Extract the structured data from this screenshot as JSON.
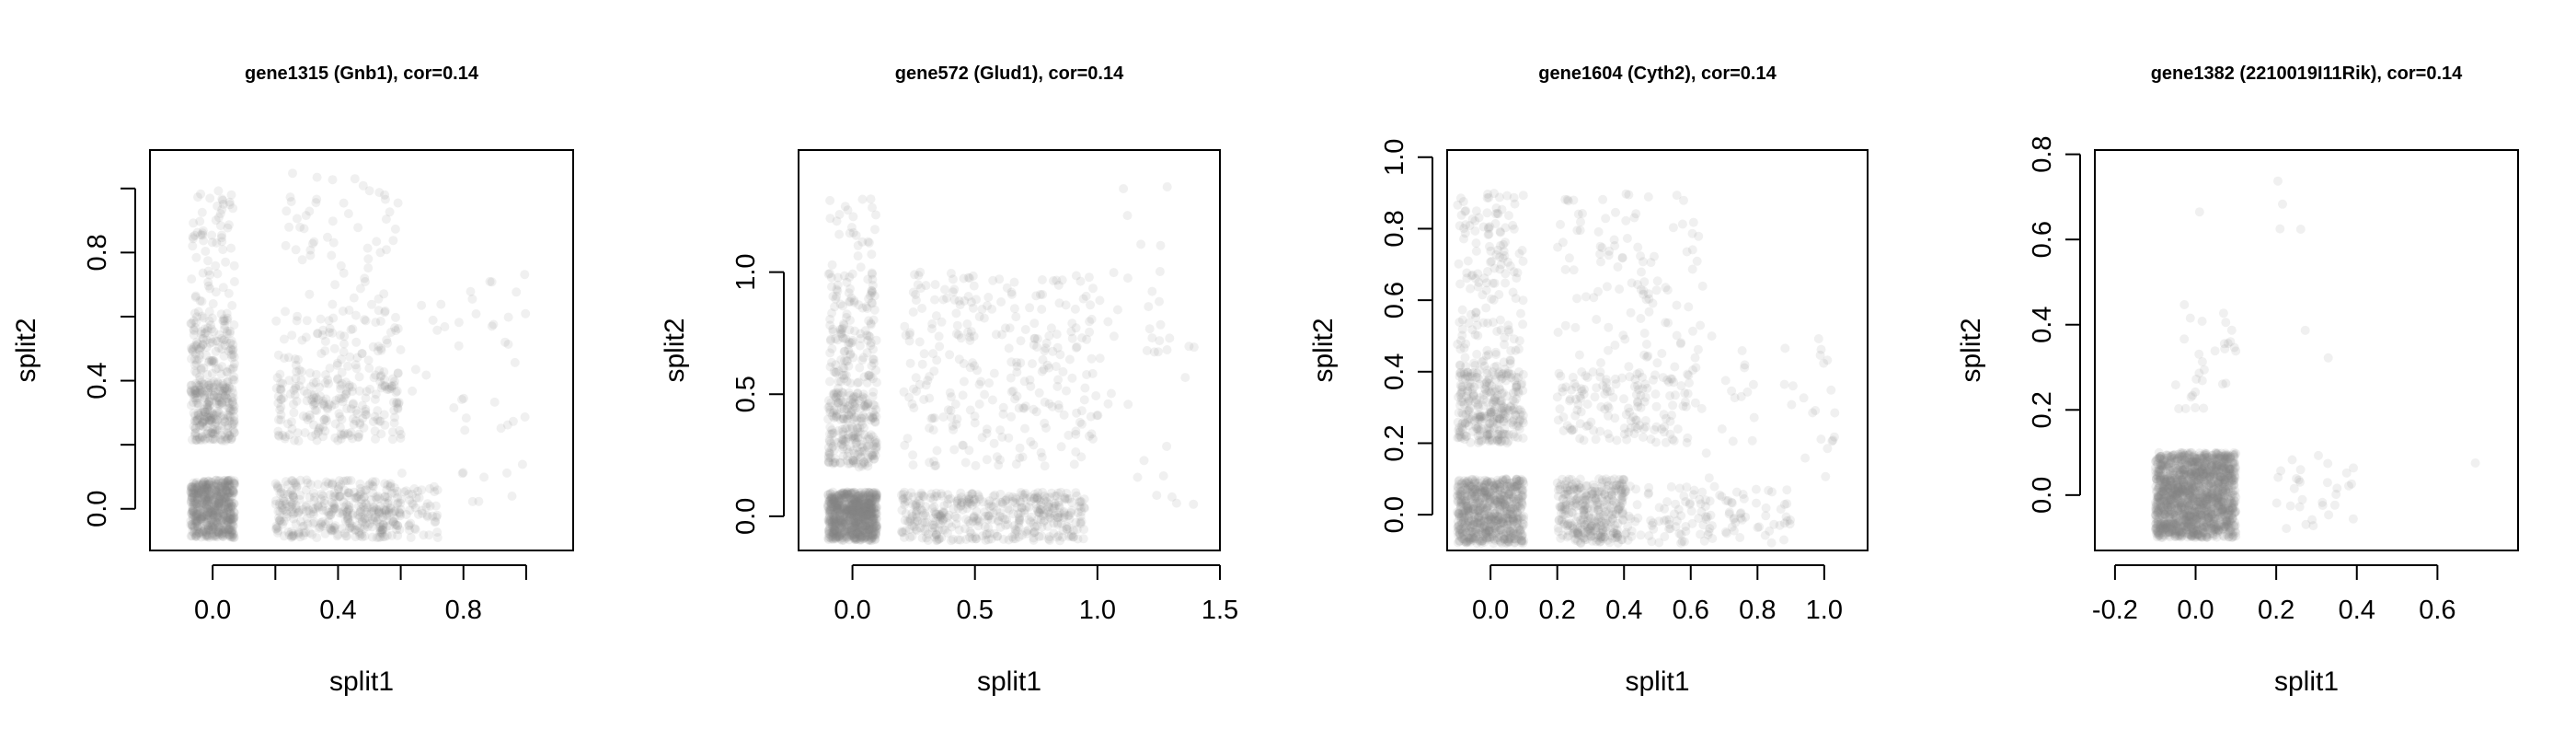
{
  "chart_data": [
    {
      "type": "scatter",
      "title": "gene1315 (Gnb1), cor=0.14",
      "xlabel": "split1",
      "ylabel": "split2",
      "xlim": [
        -0.2,
        1.15
      ],
      "ylim": [
        -0.13,
        1.12
      ],
      "xticks": [
        0.0,
        0.4,
        0.8
      ],
      "xtick_labels": [
        "0.0",
        "0.4",
        "0.8"
      ],
      "xticks_unlabeled": [
        0.2,
        0.6,
        1.0
      ],
      "yticks": [
        0.0,
        0.4,
        0.8
      ],
      "ytick_labels": [
        "0.0",
        "0.4",
        "0.8"
      ],
      "yticks_unlabeled": [
        0.2,
        0.6,
        1.0
      ],
      "point_color": "#808080",
      "point_opacity": 0.12,
      "grid": false,
      "clusters": [
        {
          "x": [
            -0.07,
            0.07
          ],
          "y": [
            -0.09,
            0.09
          ],
          "count": 600
        },
        {
          "x": [
            0.2,
            0.6
          ],
          "y": [
            -0.09,
            0.09
          ],
          "count": 380
        },
        {
          "x": [
            0.6,
            0.72
          ],
          "y": [
            -0.09,
            0.07
          ],
          "count": 45
        },
        {
          "x": [
            -0.07,
            0.07
          ],
          "y": [
            0.21,
            0.4
          ],
          "count": 260
        },
        {
          "x": [
            0.2,
            0.6
          ],
          "y": [
            0.21,
            0.4
          ],
          "count": 190
        },
        {
          "x": [
            -0.07,
            0.07
          ],
          "y": [
            0.4,
            0.6
          ],
          "count": 120
        },
        {
          "x": [
            0.2,
            0.6
          ],
          "y": [
            0.4,
            0.6
          ],
          "count": 90
        },
        {
          "x": [
            -0.07,
            0.07
          ],
          "y": [
            0.6,
            1.0
          ],
          "count": 70
        },
        {
          "x": [
            0.2,
            0.6
          ],
          "y": [
            0.6,
            1.05
          ],
          "count": 65
        },
        {
          "x": [
            0.6,
            1.0
          ],
          "y": [
            0.0,
            0.75
          ],
          "count": 45
        }
      ]
    },
    {
      "type": "scatter",
      "title": "gene572 (Glud1), cor=0.14",
      "xlabel": "split1",
      "ylabel": "split2",
      "xlim": [
        -0.22,
        1.5
      ],
      "ylim": [
        -0.14,
        1.5
      ],
      "xticks": [
        0.0,
        0.5,
        1.0,
        1.5
      ],
      "xtick_labels": [
        "0.0",
        "0.5",
        "1.0",
        "1.5"
      ],
      "yticks": [
        0.0,
        0.5,
        1.0
      ],
      "ytick_labels": [
        "0.0",
        "0.5",
        "1.0"
      ],
      "point_color": "#808080",
      "point_opacity": 0.12,
      "grid": false,
      "clusters": [
        {
          "x": [
            -0.1,
            0.1
          ],
          "y": [
            -0.1,
            0.1
          ],
          "count": 800
        },
        {
          "x": [
            0.2,
            0.95
          ],
          "y": [
            -0.1,
            0.1
          ],
          "count": 420
        },
        {
          "x": [
            -0.1,
            0.1
          ],
          "y": [
            0.2,
            0.5
          ],
          "count": 230
        },
        {
          "x": [
            -0.1,
            0.1
          ],
          "y": [
            0.5,
            1.0
          ],
          "count": 150
        },
        {
          "x": [
            -0.1,
            0.1
          ],
          "y": [
            1.0,
            1.3
          ],
          "count": 25
        },
        {
          "x": [
            0.2,
            1.0
          ],
          "y": [
            0.2,
            1.0
          ],
          "count": 280
        },
        {
          "x": [
            1.0,
            1.4
          ],
          "y": [
            0.0,
            1.35
          ],
          "count": 40
        }
      ]
    },
    {
      "type": "scatter",
      "title": "gene1604 (Cyth2), cor=0.14",
      "xlabel": "split1",
      "ylabel": "split2",
      "xlim": [
        -0.13,
        1.13
      ],
      "ylim": [
        -0.1,
        1.02
      ],
      "xticks": [
        0.0,
        0.2,
        0.4,
        0.6,
        0.8,
        1.0
      ],
      "xtick_labels": [
        "0.0",
        "0.2",
        "0.4",
        "0.6",
        "0.8",
        "1.0"
      ],
      "yticks": [
        0.0,
        0.2,
        0.4,
        0.6,
        0.8,
        1.0
      ],
      "ytick_labels": [
        "0.0",
        "0.2",
        "0.4",
        "0.6",
        "0.8",
        "1.0"
      ],
      "point_color": "#808080",
      "point_opacity": 0.12,
      "grid": false,
      "clusters": [
        {
          "x": [
            -0.1,
            0.1
          ],
          "y": [
            -0.08,
            0.1
          ],
          "count": 700
        },
        {
          "x": [
            0.2,
            0.4
          ],
          "y": [
            -0.08,
            0.1
          ],
          "count": 330
        },
        {
          "x": [
            0.4,
            0.9
          ],
          "y": [
            -0.08,
            0.08
          ],
          "count": 130
        },
        {
          "x": [
            -0.1,
            0.1
          ],
          "y": [
            0.2,
            0.4
          ],
          "count": 300
        },
        {
          "x": [
            0.2,
            0.6
          ],
          "y": [
            0.2,
            0.4
          ],
          "count": 150
        },
        {
          "x": [
            -0.1,
            0.1
          ],
          "y": [
            0.4,
            0.9
          ],
          "count": 160
        },
        {
          "x": [
            0.2,
            0.65
          ],
          "y": [
            0.4,
            0.9
          ],
          "count": 110
        },
        {
          "x": [
            0.6,
            1.05
          ],
          "y": [
            0.1,
            0.5
          ],
          "count": 40
        }
      ]
    },
    {
      "type": "scatter",
      "title": "gene1382 (2210019I11Rik), cor=0.14",
      "xlabel": "split1",
      "ylabel": "split2",
      "xlim": [
        -0.25,
        0.8
      ],
      "ylim": [
        -0.13,
        0.81
      ],
      "xticks": [
        -0.2,
        0.0,
        0.2,
        0.4,
        0.6
      ],
      "xtick_labels": [
        "-0.2",
        "0.0",
        "0.2",
        "0.4",
        "0.6"
      ],
      "yticks": [
        0.0,
        0.2,
        0.4,
        0.6,
        0.8
      ],
      "ytick_labels": [
        "0.0",
        "0.2",
        "0.4",
        "0.6",
        "0.8"
      ],
      "point_color": "#808080",
      "point_opacity": 0.12,
      "grid": false,
      "clusters": [
        {
          "x": [
            -0.1,
            0.1
          ],
          "y": [
            -0.1,
            0.1
          ],
          "count": 1600
        },
        {
          "x": [
            -0.05,
            0.1
          ],
          "y": [
            0.2,
            0.45
          ],
          "count": 30
        },
        {
          "x": [
            0.2,
            0.4
          ],
          "y": [
            -0.08,
            0.1
          ],
          "count": 30
        },
        {
          "x": [
            0.2,
            0.35
          ],
          "y": [
            0.3,
            0.78
          ],
          "count": 6
        },
        {
          "x": [
            0.6,
            0.7
          ],
          "y": [
            0.04,
            0.08
          ],
          "count": 1
        },
        {
          "x": [
            -0.01,
            0.03
          ],
          "y": [
            0.66,
            0.7
          ],
          "count": 1
        }
      ]
    }
  ]
}
